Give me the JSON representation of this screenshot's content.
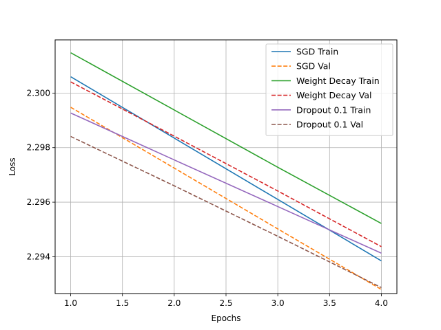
{
  "chart_data": {
    "type": "line",
    "title": "",
    "xlabel": "Epochs",
    "ylabel": "Loss",
    "x": [
      1,
      2,
      3,
      4
    ],
    "xlim": [
      0.85,
      4.15
    ],
    "ylim": [
      2.29265,
      2.30195
    ],
    "xticks": [
      1.0,
      1.5,
      2.0,
      2.5,
      3.0,
      3.5,
      4.0
    ],
    "xtick_labels": [
      "1.0",
      "1.5",
      "2.0",
      "2.5",
      "3.0",
      "3.5",
      "4.0"
    ],
    "yticks": [
      2.294,
      2.296,
      2.298,
      2.3
    ],
    "ytick_labels": [
      "2.294",
      "2.296",
      "2.298",
      "2.300"
    ],
    "grid": true,
    "legend_position": "top-right",
    "series": [
      {
        "name": "SGD Train",
        "values": [
          2.3006,
          2.29835,
          2.2961,
          2.29385
        ],
        "color": "#1f77b4",
        "style": "solid"
      },
      {
        "name": "SGD Val",
        "values": [
          2.29948,
          2.29725,
          2.29502,
          2.2928
        ],
        "color": "#ff7f0e",
        "style": "dashed"
      },
      {
        "name": "Weight Decay Train",
        "values": [
          2.30148,
          2.29938,
          2.29728,
          2.29522
        ],
        "color": "#2ca02c",
        "style": "solid"
      },
      {
        "name": "Weight Decay Val",
        "values": [
          2.30041,
          2.29842,
          2.29641,
          2.29437
        ],
        "color": "#d62728",
        "style": "dashed"
      },
      {
        "name": "Dropout 0.1 Train",
        "values": [
          2.29927,
          2.29755,
          2.29584,
          2.29413
        ],
        "color": "#9467bd",
        "style": "solid"
      },
      {
        "name": "Dropout 0.1 Val",
        "values": [
          2.29841,
          2.2966,
          2.29475,
          2.29287
        ],
        "color": "#8c564b",
        "style": "dashed"
      }
    ]
  }
}
